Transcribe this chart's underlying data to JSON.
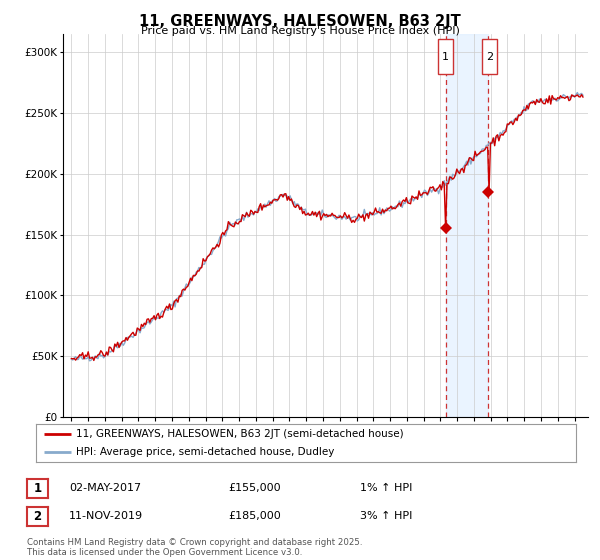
{
  "title": "11, GREENWAYS, HALESOWEN, B63 2JT",
  "subtitle": "Price paid vs. HM Land Registry's House Price Index (HPI)",
  "ytick_values": [
    0,
    50000,
    100000,
    150000,
    200000,
    250000,
    300000
  ],
  "ylim": [
    0,
    315000
  ],
  "xlim_start": 1994.5,
  "xlim_end": 2025.8,
  "hpi_color": "#88aacc",
  "price_color": "#cc0000",
  "transaction1_x": 2017.33,
  "transaction2_x": 2019.86,
  "transaction1_price": 155000,
  "transaction2_price": 185000,
  "legend_label1": "11, GREENWAYS, HALESOWEN, B63 2JT (semi-detached house)",
  "legend_label2": "HPI: Average price, semi-detached house, Dudley",
  "footer": "Contains HM Land Registry data © Crown copyright and database right 2025.\nThis data is licensed under the Open Government Licence v3.0.",
  "background_color": "#ffffff",
  "shaded_color": "#ddeeff",
  "grid_color": "#cccccc",
  "box_edge_color": "#cc3333"
}
